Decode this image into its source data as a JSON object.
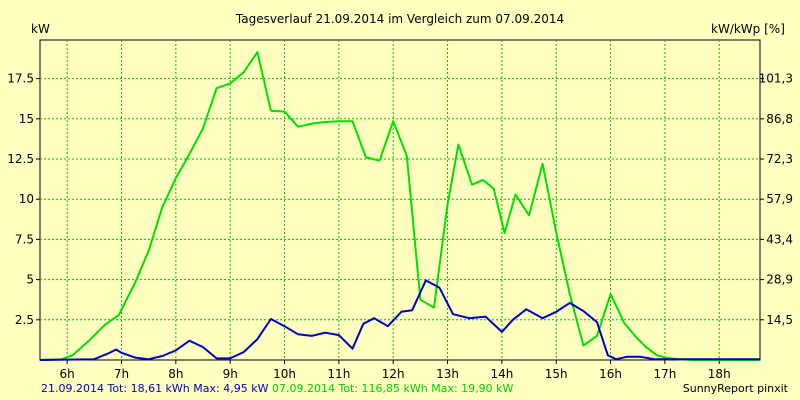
{
  "chart_data": {
    "type": "line",
    "title": "Tagesverlauf 21.09.2014 im Vergleich zum 07.09.2014",
    "ylabel": "kW",
    "ylabel_right": "kW/kWp [%]",
    "ylim": [
      0,
      19.9
    ],
    "grid": true,
    "x_ticks": [
      "6h",
      "7h",
      "8h",
      "9h",
      "10h",
      "11h",
      "12h",
      "13h",
      "14h",
      "15h",
      "16h",
      "17h",
      "18h"
    ],
    "y_ticks": [
      2.5,
      5,
      7.5,
      10,
      12.5,
      15,
      17.5
    ],
    "y_tick_labels": [
      "2.5",
      "5",
      "7.5",
      "10",
      "12.5",
      "15",
      "17.5"
    ],
    "y_right_ticks": [
      "14,5",
      "28,9",
      "43,4",
      "57,9",
      "72,3",
      "86,8",
      "101,3"
    ],
    "x_range": [
      5.5,
      18.75
    ],
    "series": [
      {
        "name": "21.09.2014",
        "color": "#0000c0",
        "x": [
          5.5,
          6.5,
          6.75,
          6.9,
          7.0,
          7.25,
          7.5,
          7.75,
          8.0,
          8.25,
          8.5,
          8.75,
          9.0,
          9.25,
          9.5,
          9.75,
          10.0,
          10.25,
          10.5,
          10.75,
          11.0,
          11.25,
          11.45,
          11.65,
          11.9,
          12.15,
          12.35,
          12.6,
          12.85,
          13.1,
          13.4,
          13.7,
          14.0,
          14.2,
          14.45,
          14.75,
          15.0,
          15.25,
          15.5,
          15.75,
          15.95,
          16.1,
          16.3,
          16.55,
          16.8,
          17.0,
          17.5,
          18.0,
          18.5,
          18.75
        ],
        "values": [
          0,
          0.05,
          0.4,
          0.65,
          0.45,
          0.15,
          0.05,
          0.25,
          0.6,
          1.2,
          0.8,
          0.1,
          0.1,
          0.5,
          1.3,
          2.55,
          2.1,
          1.6,
          1.5,
          1.7,
          1.55,
          0.7,
          2.25,
          2.6,
          2.1,
          3.0,
          3.1,
          4.95,
          4.5,
          2.85,
          2.6,
          2.7,
          1.75,
          2.5,
          3.15,
          2.6,
          3.0,
          3.55,
          3.05,
          2.35,
          0.3,
          0.05,
          0.2,
          0.2,
          0.05,
          0.05,
          0.05,
          0.05,
          0.05,
          0.05
        ]
      },
      {
        "name": "07.09.2014",
        "color": "#00e000",
        "x": [
          5.5,
          5.9,
          6.1,
          6.4,
          6.7,
          6.95,
          7.25,
          7.5,
          7.75,
          8.0,
          8.25,
          8.5,
          8.75,
          9.0,
          9.25,
          9.5,
          9.75,
          10.0,
          10.25,
          10.5,
          10.75,
          11.0,
          11.25,
          11.5,
          11.75,
          12.0,
          12.25,
          12.5,
          12.75,
          13.0,
          13.2,
          13.45,
          13.65,
          13.85,
          14.05,
          14.25,
          14.5,
          14.75,
          15.0,
          15.25,
          15.5,
          15.75,
          16.0,
          16.25,
          16.45,
          16.65,
          16.85,
          17.0,
          17.25,
          17.5,
          17.75,
          18.0,
          18.25,
          18.5,
          18.75
        ],
        "values": [
          0,
          0.05,
          0.3,
          1.2,
          2.2,
          2.8,
          4.8,
          6.8,
          9.5,
          11.3,
          12.8,
          14.4,
          16.9,
          17.2,
          17.9,
          19.15,
          15.5,
          15.45,
          14.5,
          14.7,
          14.8,
          14.85,
          14.85,
          12.6,
          12.4,
          14.85,
          12.7,
          3.75,
          3.25,
          9.65,
          13.4,
          10.9,
          11.2,
          10.65,
          7.9,
          10.3,
          9.0,
          12.2,
          7.95,
          4.1,
          0.9,
          1.5,
          4.1,
          2.3,
          1.5,
          0.8,
          0.3,
          0.15,
          0.05,
          0,
          0,
          0,
          0,
          0,
          0
        ]
      }
    ]
  },
  "footer": {
    "blue_text": "21.09.2014 Tot: 18,61 kWh Max: 4,95 kW",
    "green_text": "07.09.2014 Tot: 116,85 kWh Max: 19,90 kW",
    "credit": "SunnyReport pinxit"
  }
}
